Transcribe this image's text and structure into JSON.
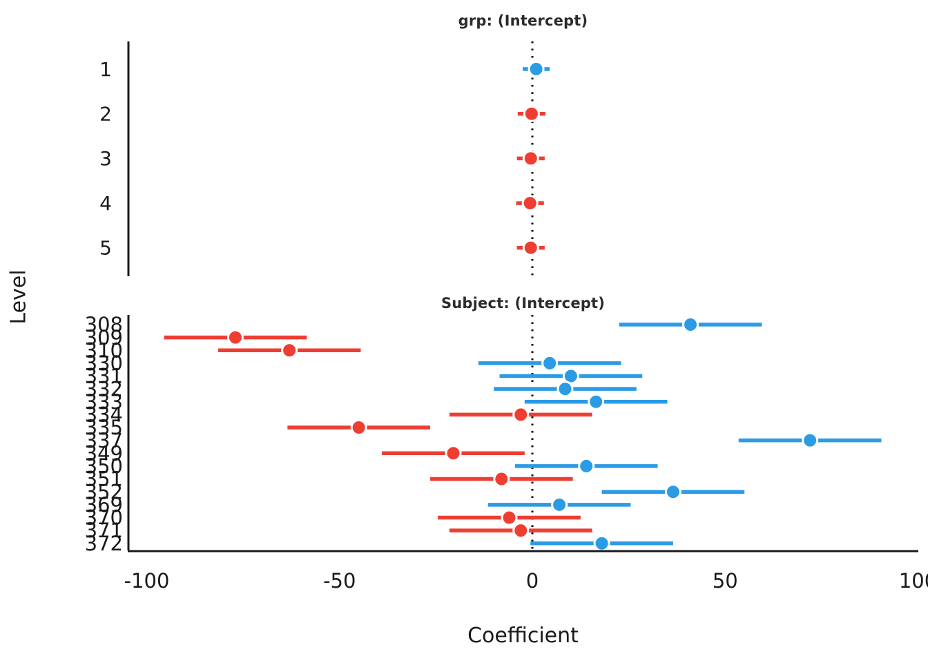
{
  "figure": {
    "xlabel": "Coefficient",
    "ylabel": "Level"
  },
  "colors": {
    "positive": "#2b9be5",
    "negative": "#ee3e32",
    "axis": "#1a1a1a",
    "zero_line": "#000000",
    "background": "#ffffff"
  },
  "x_axis": {
    "tick_labels": [
      "-100",
      "-50",
      "0",
      "50",
      "100"
    ],
    "tick_values": [
      -100,
      -50,
      0,
      50,
      100
    ],
    "range": [
      -105,
      103
    ],
    "grid": false
  },
  "chart_data": [
    {
      "type": "scatter",
      "subtype": "forest-plot",
      "title": "grp: (Intercept)",
      "xlabel": "Coefficient",
      "ylabel": "Level",
      "xlim": [
        -105,
        103
      ],
      "legend": false,
      "grid": false,
      "zero_reference_line": 0,
      "rows": [
        {
          "label": "1",
          "estimate": 1.0,
          "ci_low": -2.5,
          "ci_high": 4.5,
          "sign": "positive"
        },
        {
          "label": "2",
          "estimate": -0.2,
          "ci_low": -3.8,
          "ci_high": 3.4,
          "sign": "negative"
        },
        {
          "label": "3",
          "estimate": -0.4,
          "ci_low": -4.0,
          "ci_high": 3.2,
          "sign": "negative"
        },
        {
          "label": "4",
          "estimate": -0.6,
          "ci_low": -4.2,
          "ci_high": 3.0,
          "sign": "negative"
        },
        {
          "label": "5",
          "estimate": -0.4,
          "ci_low": -4.0,
          "ci_high": 3.2,
          "sign": "negative"
        }
      ]
    },
    {
      "type": "scatter",
      "subtype": "forest-plot",
      "title": "Subject: (Intercept)",
      "xlabel": "Coefficient",
      "ylabel": "Level",
      "xlim": [
        -105,
        103
      ],
      "legend": false,
      "grid": false,
      "zero_reference_line": 0,
      "rows": [
        {
          "label": "308",
          "estimate": 41.0,
          "ci_low": 22.5,
          "ci_high": 59.5,
          "sign": "positive"
        },
        {
          "label": "309",
          "estimate": -77.0,
          "ci_low": -95.5,
          "ci_high": -58.5,
          "sign": "negative"
        },
        {
          "label": "310",
          "estimate": -63.0,
          "ci_low": -81.5,
          "ci_high": -44.5,
          "sign": "negative"
        },
        {
          "label": "330",
          "estimate": 4.5,
          "ci_low": -14.0,
          "ci_high": 23.0,
          "sign": "positive"
        },
        {
          "label": "331",
          "estimate": 10.0,
          "ci_low": -8.5,
          "ci_high": 28.5,
          "sign": "positive"
        },
        {
          "label": "332",
          "estimate": 8.5,
          "ci_low": -10.0,
          "ci_high": 27.0,
          "sign": "positive"
        },
        {
          "label": "333",
          "estimate": 16.5,
          "ci_low": -2.0,
          "ci_high": 35.0,
          "sign": "positive"
        },
        {
          "label": "334",
          "estimate": -3.0,
          "ci_low": -21.5,
          "ci_high": 15.5,
          "sign": "negative"
        },
        {
          "label": "335",
          "estimate": -45.0,
          "ci_low": -63.5,
          "ci_high": -26.5,
          "sign": "negative"
        },
        {
          "label": "337",
          "estimate": 72.0,
          "ci_low": 53.5,
          "ci_high": 90.5,
          "sign": "positive"
        },
        {
          "label": "349",
          "estimate": -20.5,
          "ci_low": -39.0,
          "ci_high": -2.0,
          "sign": "negative"
        },
        {
          "label": "350",
          "estimate": 14.0,
          "ci_low": -4.5,
          "ci_high": 32.5,
          "sign": "positive"
        },
        {
          "label": "351",
          "estimate": -8.0,
          "ci_low": -26.5,
          "ci_high": 10.5,
          "sign": "negative"
        },
        {
          "label": "352",
          "estimate": 36.5,
          "ci_low": 18.0,
          "ci_high": 55.0,
          "sign": "positive"
        },
        {
          "label": "369",
          "estimate": 7.0,
          "ci_low": -11.5,
          "ci_high": 25.5,
          "sign": "positive"
        },
        {
          "label": "370",
          "estimate": -6.0,
          "ci_low": -24.5,
          "ci_high": 12.5,
          "sign": "negative"
        },
        {
          "label": "371",
          "estimate": -3.0,
          "ci_low": -21.5,
          "ci_high": 15.5,
          "sign": "negative"
        },
        {
          "label": "372",
          "estimate": 18.0,
          "ci_low": -0.5,
          "ci_high": 36.5,
          "sign": "positive"
        }
      ]
    }
  ]
}
